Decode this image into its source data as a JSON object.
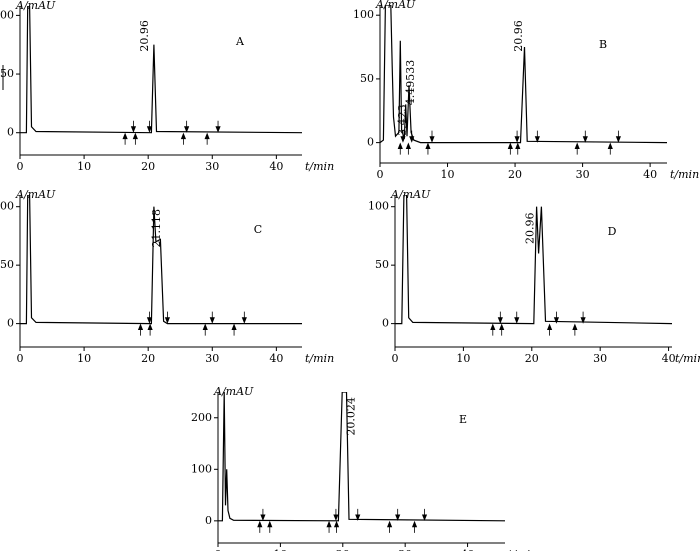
{
  "chart_data": [
    {
      "type": "line",
      "panel": "A",
      "ylabel": "A/mAU",
      "xlabel": "t/min",
      "xlim": [
        0,
        44
      ],
      "ylim": [
        -19,
        108
      ],
      "xticks": [
        0,
        10,
        20,
        30,
        40
      ],
      "yticks": [
        0,
        50,
        100
      ],
      "series": [
        {
          "color": "#000000",
          "x": [
            0,
            1,
            1.2,
            1.5,
            1.8,
            2.5,
            20.5,
            20.9,
            21.3,
            44
          ],
          "values": [
            0,
            0,
            108,
            108,
            5,
            1,
            0,
            75,
            1,
            0
          ]
        }
      ],
      "annotations": [
        {
          "text": "20.96",
          "x": 19.5,
          "y": 96
        }
      ],
      "markers_up": [
        16.4,
        18,
        25.5,
        29.2
      ],
      "markers_down": [
        17.7,
        20.2,
        26,
        30.9
      ]
    },
    {
      "type": "line",
      "panel": "B",
      "ylabel": "A/mAU",
      "xlabel": "t/min",
      "xlim": [
        0,
        42.5
      ],
      "ylim": [
        -16,
        108
      ],
      "xticks": [
        0,
        10,
        20,
        30,
        40
      ],
      "yticks": [
        0,
        50,
        100
      ],
      "series": [
        {
          "color": "#000000",
          "x": [
            0,
            0.5,
            0.8,
            1.6,
            1.8,
            2,
            2.3,
            2.8,
            3,
            3.2,
            3.6,
            3.8,
            4,
            4.3,
            4.6,
            5,
            6,
            20.8,
            21.4,
            21.8,
            42.5
          ],
          "values": [
            0,
            2,
            108,
            108,
            60,
            20,
            5,
            8,
            80,
            10,
            3,
            30,
            5,
            45,
            8,
            2,
            0,
            0,
            75,
            1,
            0
          ]
        }
      ],
      "annotations": [
        {
          "text": "3.423",
          "x": 3.4,
          "y": 30
        },
        {
          "text": "4.49533",
          "x": 4.6,
          "y": 65
        },
        {
          "text": "20.96",
          "x": 20.6,
          "y": 96
        }
      ],
      "markers_up": [
        3,
        4.2,
        7.1,
        19.3,
        20.4,
        29.2,
        34.1
      ],
      "markers_down": [
        3.4,
        4.7,
        7.7,
        20.3,
        23.3,
        30.4,
        35.3
      ]
    },
    {
      "type": "line",
      "panel": "C",
      "ylabel": "A/mAU",
      "xlabel": "t/min",
      "xlim": [
        0,
        44
      ],
      "ylim": [
        -20,
        110
      ],
      "xticks": [
        0,
        10,
        20,
        30,
        40
      ],
      "yticks": [
        0,
        50,
        100
      ],
      "series": [
        {
          "color": "#000000",
          "x": [
            0,
            1,
            1.2,
            1.5,
            1.8,
            2.5,
            20.5,
            20.9,
            21.2,
            21.9,
            22.4,
            23,
            44
          ],
          "values": [
            0,
            0,
            110,
            110,
            5,
            1,
            0,
            100,
            70,
            72,
            2,
            0,
            0
          ]
        }
      ],
      "annotations": [
        {
          "text": "21.118",
          "x": 21.4,
          "y": 98
        }
      ],
      "markers_up": [
        18.8,
        20.3,
        28.9,
        33.4
      ],
      "markers_down": [
        20.2,
        23,
        30,
        35
      ]
    },
    {
      "type": "line",
      "panel": "D",
      "ylabel": "A/mAU",
      "xlabel": "t/min",
      "xlim": [
        0,
        40.5
      ],
      "ylim": [
        -20,
        110
      ],
      "xticks": [
        0,
        10,
        20,
        30,
        40
      ],
      "yticks": [
        0,
        50,
        100
      ],
      "series": [
        {
          "color": "#000000",
          "x": [
            0,
            1,
            1.3,
            1.7,
            2,
            2.6,
            20.3,
            20.7,
            21,
            21.4,
            22,
            40.5
          ],
          "values": [
            0,
            0,
            110,
            110,
            5,
            1,
            0,
            100,
            60,
            100,
            2,
            0
          ]
        }
      ],
      "annotations": [
        {
          "text": "20.96",
          "x": 19.8,
          "y": 95
        }
      ],
      "markers_up": [
        14.3,
        15.6,
        22.6,
        26.3
      ],
      "markers_down": [
        15.4,
        17.8,
        23.6,
        27.5
      ]
    },
    {
      "type": "line",
      "panel": "E",
      "ylabel": "A/mAU",
      "xlabel": "t/min",
      "xlim": [
        0,
        46
      ],
      "ylim": [
        -43,
        250
      ],
      "xticks": [
        0,
        10,
        20,
        30,
        40
      ],
      "yticks": [
        0,
        100,
        200
      ],
      "series": [
        {
          "color": "#000000",
          "x": [
            0,
            0.7,
            1,
            1.2,
            1.4,
            1.6,
            1.9,
            2.5,
            19.3,
            19.9,
            20.6,
            21,
            46
          ],
          "values": [
            0,
            0,
            250,
            30,
            100,
            20,
            5,
            1,
            0,
            250,
            250,
            3,
            0
          ]
        }
      ],
      "annotations": [
        {
          "text": "20.024",
          "x": 21.4,
          "y": 240
        }
      ],
      "markers_up": [
        6.7,
        8.3,
        17.8,
        19,
        27.5,
        31.5
      ],
      "markers_down": [
        7.2,
        18.9,
        22.4,
        28.8,
        33.1
      ]
    }
  ]
}
